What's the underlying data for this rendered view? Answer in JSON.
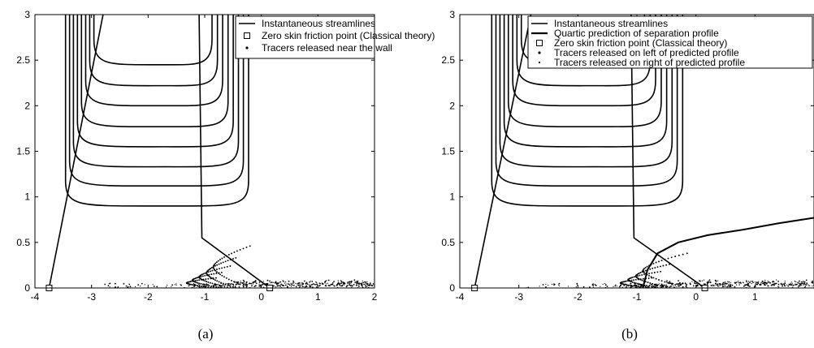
{
  "figure": {
    "panels": [
      {
        "caption": "(a)"
      },
      {
        "caption": "(b)"
      }
    ]
  },
  "chart_data": [
    {
      "type": "line",
      "xlim": [
        -4,
        2
      ],
      "ylim": [
        0,
        3
      ],
      "x_ticks": [
        -4,
        -3,
        -2,
        -1,
        0,
        1,
        2
      ],
      "y_ticks": [
        0,
        0.5,
        1,
        1.5,
        2,
        2.5,
        3
      ],
      "grid": false,
      "legend_position": "top-right",
      "legend": [
        {
          "label": "Instantaneous streamlines",
          "marker": "line"
        },
        {
          "label": "Zero skin friction point (Classical theory)",
          "marker": "square"
        },
        {
          "label": "Tracers released near the wall",
          "marker": "dot"
        }
      ],
      "streamline_levels": [
        0.9,
        1.12,
        1.33,
        1.55,
        1.77,
        2.0,
        2.22,
        2.45
      ],
      "streamline_bounds": {
        "left_bottom_x": -3.75,
        "left_top_x": -2.78,
        "right_bottom_x": 0.15,
        "right_top_x": -1.1,
        "valley_x": -1.7
      },
      "zero_skin_friction_points": [
        {
          "x": -3.75,
          "y": 0
        },
        {
          "x": 0.15,
          "y": 0
        }
      ],
      "tracer_tongues": [
        {
          "y_top": 0.46,
          "x_tip": -0.85,
          "x_end": -0.2
        },
        {
          "y_top": 0.33,
          "x_tip": -0.97,
          "x_end": -0.45
        },
        {
          "y_top": 0.24,
          "x_tip": -1.1,
          "x_end": -0.55
        },
        {
          "y_top": 0.17,
          "x_tip": -1.22,
          "x_end": -0.7
        },
        {
          "y_top": 0.11,
          "x_tip": -1.32,
          "x_end": -0.8
        }
      ],
      "near_wall_tracer_x_range": [
        -2.9,
        2
      ]
    },
    {
      "type": "line",
      "xlim": [
        -4,
        2
      ],
      "ylim": [
        0,
        3
      ],
      "x_ticks": [
        -4,
        -3,
        -2,
        -1,
        0,
        1
      ],
      "y_ticks": [
        0,
        0.5,
        1,
        1.5,
        2,
        2.5,
        3
      ],
      "grid": false,
      "legend_position": "top-right",
      "legend": [
        {
          "label": "Instantaneous streamlines",
          "marker": "line"
        },
        {
          "label": "Quartic prediction of separation profile",
          "marker": "thick-line"
        },
        {
          "label": "Zero skin friction point (Classical theory)",
          "marker": "square"
        },
        {
          "label": "Tracers released on left of predicted profile",
          "marker": "dot"
        },
        {
          "label": "Tracers released on right of predicted profile",
          "marker": "small-dot"
        }
      ],
      "streamline_levels": [
        0.9,
        1.12,
        1.33,
        1.55,
        1.77,
        2.0,
        2.22,
        2.45
      ],
      "streamline_bounds": {
        "left_bottom_x": -3.75,
        "left_top_x": -2.78,
        "right_bottom_x": 0.15,
        "right_top_x": -1.1,
        "valley_x": -1.7
      },
      "zero_skin_friction_points": [
        {
          "x": -3.75,
          "y": 0
        },
        {
          "x": 0.15,
          "y": 0
        }
      ],
      "separation_profile": [
        {
          "x": -0.9,
          "y": 0.0
        },
        {
          "x": -0.82,
          "y": 0.2
        },
        {
          "x": -0.65,
          "y": 0.38
        },
        {
          "x": -0.3,
          "y": 0.5
        },
        {
          "x": 0.2,
          "y": 0.58
        },
        {
          "x": 0.8,
          "y": 0.64
        },
        {
          "x": 1.4,
          "y": 0.71
        },
        {
          "x": 2.0,
          "y": 0.77
        }
      ],
      "tracer_tongues": [
        {
          "y_top": 0.38,
          "x_tip": -0.9,
          "x_end": -0.15
        },
        {
          "y_top": 0.26,
          "x_tip": -1.02,
          "x_end": -0.45
        },
        {
          "y_top": 0.18,
          "x_tip": -1.15,
          "x_end": -0.6
        },
        {
          "y_top": 0.11,
          "x_tip": -1.28,
          "x_end": -0.75
        }
      ],
      "near_wall_tracer_x_range": [
        -2.9,
        2
      ]
    }
  ]
}
